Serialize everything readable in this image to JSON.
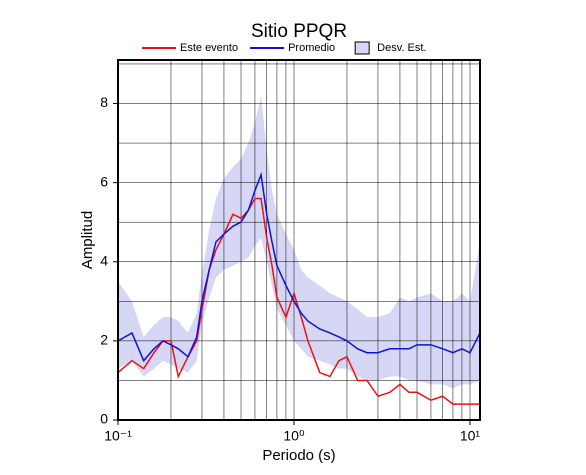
{
  "chart_data": {
    "type": "line",
    "title": "Sitio PPQR",
    "x_label": "Periodo (s)",
    "y_label": "Amplitud",
    "log_x": true,
    "grid": true,
    "xlim": [
      0.1,
      11.4
    ],
    "ylim": [
      0,
      9.1
    ],
    "xticks": [
      {
        "value": 0.1,
        "label": "10⁻¹"
      },
      {
        "value": 1,
        "label": "10⁰"
      },
      {
        "value": 10,
        "label": "10¹"
      }
    ],
    "xminor": [
      0.2,
      0.3,
      0.4,
      0.5,
      0.6,
      0.7,
      0.8,
      0.9,
      2,
      3,
      4,
      5,
      6,
      7,
      8,
      9
    ],
    "yticks": [
      0,
      2,
      4,
      6,
      8
    ],
    "yminor": [
      1,
      3,
      5,
      7,
      9
    ],
    "x": [
      0.1,
      0.12,
      0.14,
      0.16,
      0.18,
      0.2,
      0.22,
      0.25,
      0.28,
      0.3,
      0.33,
      0.36,
      0.4,
      0.45,
      0.5,
      0.55,
      0.6,
      0.65,
      0.7,
      0.75,
      0.8,
      0.9,
      1.0,
      1.1,
      1.2,
      1.4,
      1.6,
      1.8,
      2.0,
      2.3,
      2.6,
      3,
      3.5,
      4,
      4.5,
      5,
      6,
      7,
      8,
      9,
      10,
      11.4
    ],
    "band": {
      "name": "Desv. Est.",
      "color": "#d6d6f5",
      "lower": [
        1.3,
        1.5,
        1.1,
        1.3,
        1.5,
        1.4,
        1.3,
        1.2,
        1.5,
        2.4,
        3.1,
        3.6,
        3.8,
        3.9,
        4.0,
        4.1,
        4.4,
        4.6,
        4.0,
        3.4,
        2.8,
        2.4,
        2.0,
        1.8,
        1.6,
        1.5,
        1.4,
        1.3,
        1.3,
        1.1,
        1.0,
        1.0,
        1.1,
        1.1,
        1.0,
        1.0,
        0.9,
        0.9,
        0.8,
        0.9,
        0.9,
        1.0
      ],
      "upper": [
        3.5,
        3.0,
        2.1,
        2.4,
        2.6,
        2.6,
        2.5,
        2.2,
        2.7,
        3.7,
        4.8,
        5.6,
        6.1,
        6.4,
        6.6,
        7.0,
        7.5,
        8.2,
        6.8,
        5.8,
        5.2,
        4.7,
        4.3,
        3.8,
        3.6,
        3.4,
        3.2,
        3.1,
        3.0,
        2.8,
        2.6,
        2.6,
        2.7,
        3.1,
        3.0,
        3.1,
        3.2,
        3.0,
        3.0,
        3.2,
        3.0,
        4.5
      ]
    },
    "series": [
      {
        "name": "Este evento",
        "color": "#ee1111",
        "values": [
          1.2,
          1.5,
          1.3,
          1.7,
          2.0,
          2.0,
          1.1,
          1.6,
          2.0,
          2.8,
          3.8,
          4.3,
          4.7,
          5.2,
          5.1,
          5.3,
          5.6,
          5.6,
          4.6,
          3.9,
          3.1,
          2.6,
          3.2,
          2.6,
          2.0,
          1.2,
          1.1,
          1.5,
          1.6,
          1.0,
          1.0,
          0.6,
          0.7,
          0.9,
          0.7,
          0.7,
          0.5,
          0.6,
          0.4,
          0.4,
          0.4,
          0.4
        ]
      },
      {
        "name": "Promedio",
        "color": "#1111dd",
        "values": [
          2.0,
          2.2,
          1.5,
          1.8,
          2.0,
          1.9,
          1.8,
          1.6,
          2.1,
          3.0,
          3.8,
          4.5,
          4.7,
          4.9,
          5.0,
          5.3,
          5.8,
          6.2,
          5.2,
          4.5,
          3.9,
          3.4,
          3.0,
          2.7,
          2.5,
          2.3,
          2.2,
          2.1,
          2.0,
          1.8,
          1.7,
          1.7,
          1.8,
          1.8,
          1.8,
          1.9,
          1.9,
          1.8,
          1.7,
          1.8,
          1.7,
          2.2
        ]
      }
    ]
  }
}
